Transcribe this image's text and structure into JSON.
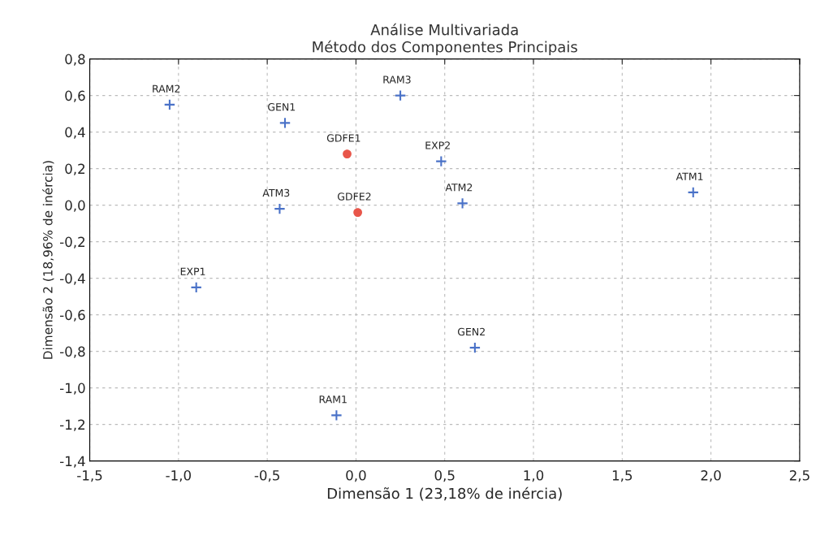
{
  "chart_data": {
    "type": "scatter",
    "title": "Análise Multivariada\nMétodo dos Componentes Principais",
    "xlabel": "Dimensão 1 (23,18% de inércia)",
    "ylabel": "Dimensão 2 (18,96% de inércia)",
    "series": [
      {
        "color": "#4a72c8",
        "marker": "cross",
        "x": [
          -1.05,
          -0.4,
          0.25,
          0.48,
          -0.43,
          0.6,
          1.9,
          -0.9,
          0.67,
          -0.11
        ],
        "values": [
          0.55,
          0.45,
          0.6,
          0.24,
          -0.02,
          0.01,
          0.07,
          -0.45,
          -0.78,
          -1.15
        ]
      },
      {
        "color": "#e8564a",
        "marker": "circle",
        "x": [
          -0.05,
          0.01
        ],
        "values": [
          0.28,
          -0.04
        ]
      }
    ],
    "annotations": [
      {
        "text": "RAM2",
        "x": -1.05,
        "y": 0.55
      },
      {
        "text": "GEN1",
        "x": -0.4,
        "y": 0.45
      },
      {
        "text": "RAM3",
        "x": 0.25,
        "y": 0.6
      },
      {
        "text": "EXP2",
        "x": 0.48,
        "y": 0.24
      },
      {
        "text": "ATM3",
        "x": -0.43,
        "y": -0.02
      },
      {
        "text": "ATM2",
        "x": 0.6,
        "y": 0.01
      },
      {
        "text": "ATM1",
        "x": 1.9,
        "y": 0.07
      },
      {
        "text": "EXP1",
        "x": -0.9,
        "y": -0.45
      },
      {
        "text": "GEN2",
        "x": 0.67,
        "y": -0.78
      },
      {
        "text": "RAM1",
        "x": -0.11,
        "y": -1.15
      },
      {
        "text": "GDFE1",
        "x": -0.05,
        "y": 0.28
      },
      {
        "text": "GDFE2",
        "x": 0.01,
        "y": -0.04
      }
    ],
    "xlim": [
      -1.5,
      2.5
    ],
    "ylim": [
      -1.4,
      0.8
    ],
    "xticks": [
      {
        "value": -1.5,
        "label": "-1,5"
      },
      {
        "value": -1.0,
        "label": "-1,0"
      },
      {
        "value": -0.5,
        "label": "-0,5"
      },
      {
        "value": 0.0,
        "label": "0,0"
      },
      {
        "value": 0.5,
        "label": "0,5"
      },
      {
        "value": 1.0,
        "label": "1,0"
      },
      {
        "value": 1.5,
        "label": "1,5"
      },
      {
        "value": 2.0,
        "label": "2,0"
      },
      {
        "value": 2.5,
        "label": "2,5"
      }
    ],
    "yticks": [
      {
        "value": -1.4,
        "label": "-1,4"
      },
      {
        "value": -1.2,
        "label": "-1,2"
      },
      {
        "value": -1.0,
        "label": "-1,0"
      },
      {
        "value": -0.8,
        "label": "-0,8"
      },
      {
        "value": -0.6,
        "label": "-0,6"
      },
      {
        "value": -0.4,
        "label": "-0,4"
      },
      {
        "value": -0.2,
        "label": "-0,2"
      },
      {
        "value": 0.0,
        "label": "0,0"
      },
      {
        "value": 0.2,
        "label": "0,2"
      },
      {
        "value": 0.4,
        "label": "0,4"
      },
      {
        "value": 0.6,
        "label": "0,6"
      },
      {
        "value": 0.8,
        "label": "0,8"
      }
    ],
    "grid": true
  }
}
